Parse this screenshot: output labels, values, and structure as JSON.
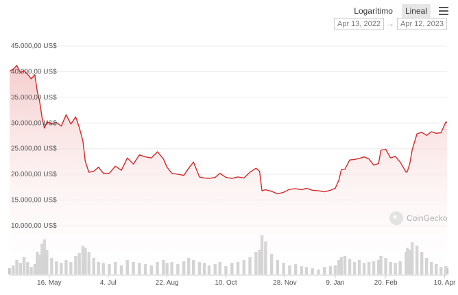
{
  "toolbar": {
    "log_label": "Logarítimo",
    "linear_label": "Lineal",
    "active_scale": "linear",
    "menu_icon": "hamburger-menu-icon"
  },
  "date_range": {
    "start": "Apr 13, 2022",
    "separator": "→",
    "end": "Apr 12, 2023"
  },
  "watermark": {
    "text": "CoinGecko",
    "icon": "gecko-logo-icon"
  },
  "colors": {
    "line": "#d62728",
    "area_fill_top": "#f4c7c7",
    "volume": "#c8c8c8",
    "grid": "#ececec"
  },
  "chart_data": {
    "type": "line",
    "title": "",
    "xlabel": "",
    "ylabel": "",
    "currency_suffix": "US$",
    "ylim": [
      10000,
      45000
    ],
    "y_ticks": [
      10000,
      15000,
      20000,
      25000,
      30000,
      35000,
      40000,
      45000
    ],
    "y_tick_labels": [
      "10.000,00 US$",
      "15.000,00 US$",
      "20.000,00 US$",
      "25.000,00 US$",
      "30.000,00 US$",
      "35.000,00 US$",
      "40.000,00 US$",
      "45.000,00 US$"
    ],
    "x_tick_labels": [
      "16. May",
      "4. Jul",
      "22. Aug",
      "10. Oct",
      "28. Nov",
      "9. Jan",
      "20. Feb",
      "10. Apr"
    ],
    "x_tick_dates": [
      "2022-05-16",
      "2022-07-04",
      "2022-08-22",
      "2022-10-10",
      "2022-11-28",
      "2023-01-09",
      "2023-02-20",
      "2023-04-10"
    ],
    "grid": true,
    "legend": "none",
    "series": [
      {
        "x": [
          "2022-04-13",
          "2022-04-16",
          "2022-04-19",
          "2022-04-22",
          "2022-04-25",
          "2022-04-28",
          "2022-05-01",
          "2022-05-04",
          "2022-05-06",
          "2022-05-08",
          "2022-05-10",
          "2022-05-12",
          "2022-05-14",
          "2022-05-18",
          "2022-05-22",
          "2022-05-26",
          "2022-05-30",
          "2022-06-03",
          "2022-06-07",
          "2022-06-10",
          "2022-06-13",
          "2022-06-15",
          "2022-06-18",
          "2022-06-22",
          "2022-06-26",
          "2022-06-30",
          "2022-07-05",
          "2022-07-10",
          "2022-07-15",
          "2022-07-20",
          "2022-07-25",
          "2022-07-30",
          "2022-08-04",
          "2022-08-09",
          "2022-08-14",
          "2022-08-19",
          "2022-08-22",
          "2022-08-26",
          "2022-08-31",
          "2022-09-05",
          "2022-09-09",
          "2022-09-13",
          "2022-09-18",
          "2022-09-22",
          "2022-09-26",
          "2022-10-01",
          "2022-10-05",
          "2022-10-10",
          "2022-10-15",
          "2022-10-20",
          "2022-10-25",
          "2022-10-30",
          "2022-11-04",
          "2022-11-07",
          "2022-11-09",
          "2022-11-12",
          "2022-11-17",
          "2022-11-22",
          "2022-11-27",
          "2022-12-02",
          "2022-12-07",
          "2022-12-12",
          "2022-12-16",
          "2022-12-21",
          "2022-12-26",
          "2022-12-31",
          "2023-01-05",
          "2023-01-09",
          "2023-01-12",
          "2023-01-14",
          "2023-01-17",
          "2023-01-21",
          "2023-01-25",
          "2023-01-29",
          "2023-02-02",
          "2023-02-06",
          "2023-02-10",
          "2023-02-14",
          "2023-02-16",
          "2023-02-20",
          "2023-02-24",
          "2023-02-28",
          "2023-03-04",
          "2023-03-09",
          "2023-03-10",
          "2023-03-12",
          "2023-03-14",
          "2023-03-18",
          "2023-03-22",
          "2023-03-26",
          "2023-03-30",
          "2023-04-03",
          "2023-04-07",
          "2023-04-11",
          "2023-04-12"
        ],
        "values": [
          40100,
          40500,
          41200,
          39800,
          40200,
          39500,
          38600,
          39400,
          36200,
          34200,
          31100,
          29000,
          30200,
          29800,
          30100,
          29400,
          31600,
          29800,
          31200,
          29100,
          26500,
          22500,
          20400,
          20600,
          21400,
          20200,
          20200,
          21600,
          20800,
          23200,
          22000,
          23800,
          23400,
          23200,
          24400,
          23000,
          21400,
          20200,
          20000,
          19800,
          21200,
          22400,
          19500,
          19300,
          19200,
          19400,
          20200,
          19400,
          19200,
          19500,
          19300,
          20400,
          21200,
          20600,
          16800,
          17000,
          16700,
          16200,
          16500,
          17100,
          17200,
          17000,
          17300,
          16900,
          16800,
          16600,
          16900,
          17300,
          18900,
          20900,
          21000,
          22800,
          22900,
          23100,
          23400,
          23000,
          21800,
          22100,
          24700,
          24900,
          23200,
          23500,
          22400,
          20400,
          20600,
          22100,
          24800,
          27900,
          28200,
          27600,
          28300,
          28000,
          28100,
          30200,
          30100
        ]
      }
    ],
    "volume_relative": [
      0.15,
      0.22,
      0.35,
      0.28,
      0.42,
      0.3,
      0.18,
      0.25,
      0.55,
      0.48,
      0.75,
      0.85,
      0.6,
      0.4,
      0.32,
      0.28,
      0.35,
      0.3,
      0.45,
      0.52,
      0.7,
      0.65,
      0.55,
      0.4,
      0.3,
      0.28,
      0.25,
      0.3,
      0.22,
      0.35,
      0.3,
      0.28,
      0.25,
      0.22,
      0.3,
      0.35,
      0.28,
      0.3,
      0.25,
      0.32,
      0.4,
      0.35,
      0.3,
      0.28,
      0.22,
      0.25,
      0.3,
      0.2,
      0.28,
      0.3,
      0.35,
      0.42,
      0.55,
      0.6,
      0.95,
      0.8,
      0.5,
      0.35,
      0.28,
      0.22,
      0.25,
      0.2,
      0.18,
      0.15,
      0.12,
      0.18,
      0.2,
      0.22,
      0.35,
      0.42,
      0.45,
      0.38,
      0.3,
      0.35,
      0.28,
      0.3,
      0.32,
      0.35,
      0.45,
      0.4,
      0.3,
      0.28,
      0.32,
      0.55,
      0.65,
      0.6,
      0.78,
      0.7,
      0.55,
      0.4,
      0.3,
      0.25,
      0.18,
      0.2,
      0.15
    ]
  }
}
